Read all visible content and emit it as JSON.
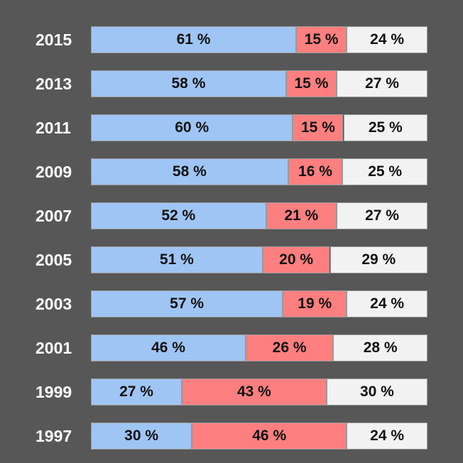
{
  "chart_data": {
    "type": "bar",
    "orientation": "horizontal",
    "stacked": true,
    "normalized": true,
    "categories": [
      "2015",
      "2013",
      "2011",
      "2009",
      "2007",
      "2005",
      "2003",
      "2001",
      "1999",
      "1997"
    ],
    "series": [
      {
        "name": "",
        "color": "#9fc5f4",
        "values": [
          61,
          58,
          60,
          58,
          52,
          51,
          57,
          46,
          27,
          30
        ]
      },
      {
        "name": "",
        "color": "#fe7f7f",
        "values": [
          15,
          15,
          15,
          16,
          21,
          20,
          19,
          26,
          43,
          46
        ]
      },
      {
        "name": "",
        "color": "#f2f2f2",
        "values": [
          24,
          27,
          25,
          25,
          27,
          29,
          24,
          28,
          30,
          24
        ]
      }
    ],
    "value_suffix": " %",
    "title": "",
    "xlabel": "",
    "ylabel": "",
    "legend": "none",
    "background": "#575757"
  }
}
